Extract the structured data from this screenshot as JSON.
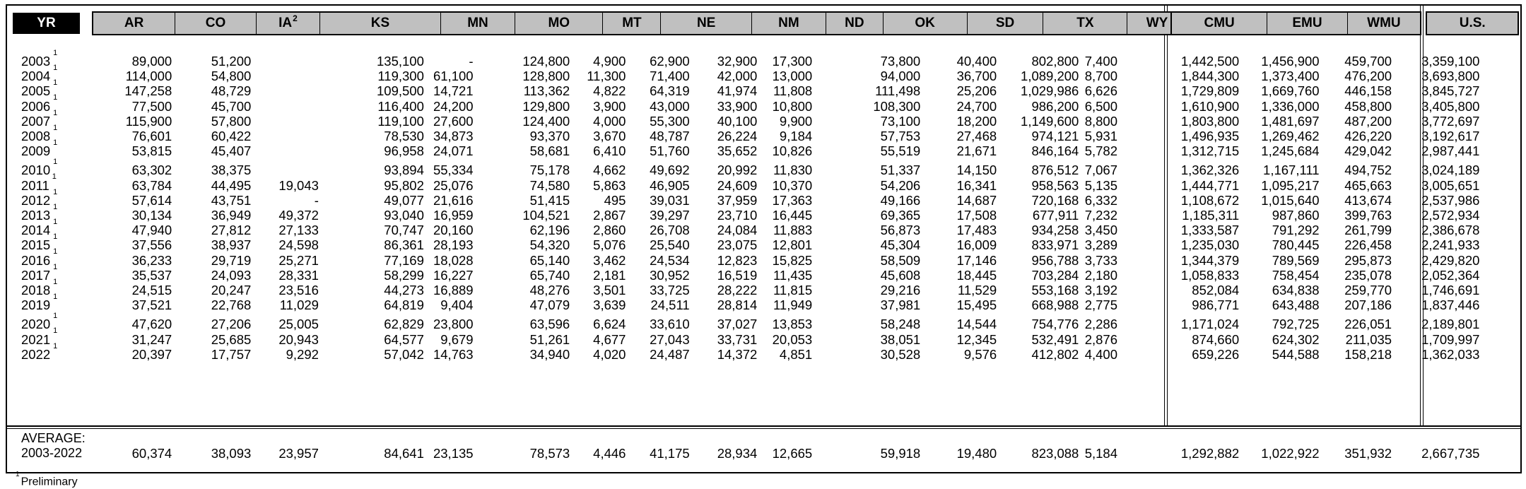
{
  "header": {
    "yr": "YR",
    "ia_note": "2",
    "states": [
      "AR",
      "CO",
      "IA",
      "KS",
      "MN",
      "MO",
      "MT",
      "NE",
      "NM",
      "ND",
      "OK",
      "SD",
      "TX",
      "WY"
    ],
    "regions": [
      "CMU",
      "EMU",
      "WMU"
    ],
    "us": "U.S."
  },
  "rows": [
    {
      "yr": "2003",
      "note": "1",
      "vals": [
        "89,000",
        "51,200",
        "",
        "135,100",
        "-",
        "124,800",
        "4,900",
        "62,900",
        "32,900",
        "17,300",
        "73,800",
        "40,400",
        "802,800",
        "7,400",
        "1,442,500",
        "1,456,900",
        "459,700",
        "3,359,100"
      ]
    },
    {
      "yr": "2004",
      "note": "1",
      "vals": [
        "114,000",
        "54,800",
        "",
        "119,300",
        "61,100",
        "128,800",
        "11,300",
        "71,400",
        "42,000",
        "13,000",
        "94,000",
        "36,700",
        "1,089,200",
        "8,700",
        "1,844,300",
        "1,373,400",
        "476,200",
        "3,693,800"
      ]
    },
    {
      "yr": "2005",
      "note": "1",
      "vals": [
        "147,258",
        "48,729",
        "",
        "109,500",
        "14,721",
        "113,362",
        "4,822",
        "64,319",
        "41,974",
        "11,808",
        "111,498",
        "25,206",
        "1,029,986",
        "6,626",
        "1,729,809",
        "1,669,760",
        "446,158",
        "3,845,727"
      ]
    },
    {
      "yr": "2006",
      "note": "1",
      "vals": [
        "77,500",
        "45,700",
        "",
        "116,400",
        "24,200",
        "129,800",
        "3,900",
        "43,000",
        "33,900",
        "10,800",
        "108,300",
        "24,700",
        "986,200",
        "6,500",
        "1,610,900",
        "1,336,000",
        "458,800",
        "3,405,800"
      ]
    },
    {
      "yr": "2007",
      "note": "1",
      "vals": [
        "115,900",
        "57,800",
        "",
        "119,100",
        "27,600",
        "124,400",
        "4,000",
        "55,300",
        "40,100",
        "9,900",
        "73,100",
        "18,200",
        "1,149,600",
        "8,800",
        "1,803,800",
        "1,481,697",
        "487,200",
        "3,772,697"
      ]
    },
    {
      "yr": "2008",
      "note": "1",
      "vals": [
        "76,601",
        "60,422",
        "",
        "78,530",
        "34,873",
        "93,370",
        "3,670",
        "48,787",
        "26,224",
        "9,184",
        "57,753",
        "27,468",
        "974,121",
        "5,931",
        "1,496,935",
        "1,269,462",
        "426,220",
        "3,192,617"
      ]
    },
    {
      "yr": "2009",
      "note": "1",
      "vals": [
        "53,815",
        "45,407",
        "",
        "96,958",
        "24,071",
        "58,681",
        "6,410",
        "51,760",
        "35,652",
        "10,826",
        "55,519",
        "21,671",
        "846,164",
        "5,782",
        "1,312,715",
        "1,245,684",
        "429,042",
        "2,987,441"
      ]
    },
    {
      "yr": "2010",
      "note": "1",
      "vals": [
        "63,302",
        "38,375",
        "",
        "93,894",
        "55,334",
        "75,178",
        "4,662",
        "49,692",
        "20,992",
        "11,830",
        "51,337",
        "14,150",
        "876,512",
        "7,067",
        "1,362,326",
        "1,167,111",
        "494,752",
        "3,024,189"
      ]
    },
    {
      "yr": "2011",
      "note": "1",
      "vals": [
        "63,784",
        "44,495",
        "19,043",
        "95,802",
        "25,076",
        "74,580",
        "5,863",
        "46,905",
        "24,609",
        "10,370",
        "54,206",
        "16,341",
        "958,563",
        "5,135",
        "1,444,771",
        "1,095,217",
        "465,663",
        "3,005,651"
      ]
    },
    {
      "yr": "2012",
      "note": "1",
      "vals": [
        "57,614",
        "43,751",
        "-",
        "49,077",
        "21,616",
        "51,415",
        "495",
        "39,031",
        "37,959",
        "17,363",
        "49,166",
        "14,687",
        "720,168",
        "6,332",
        "1,108,672",
        "1,015,640",
        "413,674",
        "2,537,986"
      ]
    },
    {
      "yr": "2013",
      "note": "1",
      "vals": [
        "30,134",
        "36,949",
        "49,372",
        "93,040",
        "16,959",
        "104,521",
        "2,867",
        "39,297",
        "23,710",
        "16,445",
        "69,365",
        "17,508",
        "677,911",
        "7,232",
        "1,185,311",
        "987,860",
        "399,763",
        "2,572,934"
      ]
    },
    {
      "yr": "2014",
      "note": "1",
      "vals": [
        "47,940",
        "27,812",
        "27,133",
        "70,747",
        "20,160",
        "62,196",
        "2,860",
        "26,708",
        "24,084",
        "11,883",
        "56,873",
        "17,483",
        "934,258",
        "3,450",
        "1,333,587",
        "791,292",
        "261,799",
        "2,386,678"
      ]
    },
    {
      "yr": "2015",
      "note": "1",
      "vals": [
        "37,556",
        "38,937",
        "24,598",
        "86,361",
        "28,193",
        "54,320",
        "5,076",
        "25,540",
        "23,075",
        "12,801",
        "45,304",
        "16,009",
        "833,971",
        "3,289",
        "1,235,030",
        "780,445",
        "226,458",
        "2,241,933"
      ]
    },
    {
      "yr": "2016",
      "note": "1",
      "vals": [
        "36,233",
        "29,719",
        "25,271",
        "77,169",
        "18,028",
        "65,140",
        "3,462",
        "24,534",
        "12,823",
        "15,825",
        "58,509",
        "17,146",
        "956,788",
        "3,733",
        "1,344,379",
        "789,569",
        "295,873",
        "2,429,820"
      ]
    },
    {
      "yr": "2017",
      "note": "1",
      "vals": [
        "35,537",
        "24,093",
        "28,331",
        "58,299",
        "16,227",
        "65,740",
        "2,181",
        "30,952",
        "16,519",
        "11,435",
        "45,608",
        "18,445",
        "703,284",
        "2,180",
        "1,058,833",
        "758,454",
        "235,078",
        "2,052,364"
      ]
    },
    {
      "yr": "2018",
      "note": "1",
      "vals": [
        "24,515",
        "20,247",
        "23,516",
        "44,273",
        "16,889",
        "48,276",
        "3,501",
        "33,725",
        "28,222",
        "11,815",
        "29,216",
        "11,529",
        "553,168",
        "3,192",
        "852,084",
        "634,838",
        "259,770",
        "1,746,691"
      ]
    },
    {
      "yr": "2019",
      "note": "1",
      "vals": [
        "37,521",
        "22,768",
        "11,029",
        "64,819",
        "9,404",
        "47,079",
        "3,639",
        "24,511",
        "28,814",
        "11,949",
        "37,981",
        "15,495",
        "668,988",
        "2,775",
        "986,771",
        "643,488",
        "207,186",
        "1,837,446"
      ]
    },
    {
      "yr": "2020",
      "note": "1",
      "vals": [
        "47,620",
        "27,206",
        "25,005",
        "62,829",
        "23,800",
        "63,596",
        "6,624",
        "33,610",
        "37,027",
        "13,853",
        "58,248",
        "14,544",
        "754,776",
        "2,286",
        "1,171,024",
        "792,725",
        "226,051",
        "2,189,801"
      ]
    },
    {
      "yr": "2021",
      "note": "1",
      "vals": [
        "31,247",
        "25,685",
        "20,943",
        "64,577",
        "9,679",
        "51,261",
        "4,677",
        "27,043",
        "33,731",
        "20,053",
        "38,051",
        "12,345",
        "532,491",
        "2,876",
        "874,660",
        "624,302",
        "211,035",
        "1,709,997"
      ]
    },
    {
      "yr": "2022",
      "note": "1",
      "vals": [
        "20,397",
        "17,757",
        "9,292",
        "57,042",
        "14,763",
        "34,940",
        "4,020",
        "24,487",
        "14,372",
        "4,851",
        "30,528",
        "9,576",
        "412,802",
        "4,400",
        "659,226",
        "544,588",
        "158,218",
        "1,362,033"
      ]
    }
  ],
  "average": {
    "label1": "AVERAGE:",
    "label2": "2003-2022",
    "vals": [
      "60,374",
      "38,093",
      "23,957",
      "84,641",
      "23,135",
      "78,573",
      "4,446",
      "41,175",
      "28,934",
      "12,665",
      "59,918",
      "19,480",
      "823,088",
      "5,184",
      "1,292,882",
      "1,022,922",
      "351,932",
      "2,667,735"
    ]
  },
  "footnote": {
    "mark": "1",
    "text": "Preliminary"
  }
}
